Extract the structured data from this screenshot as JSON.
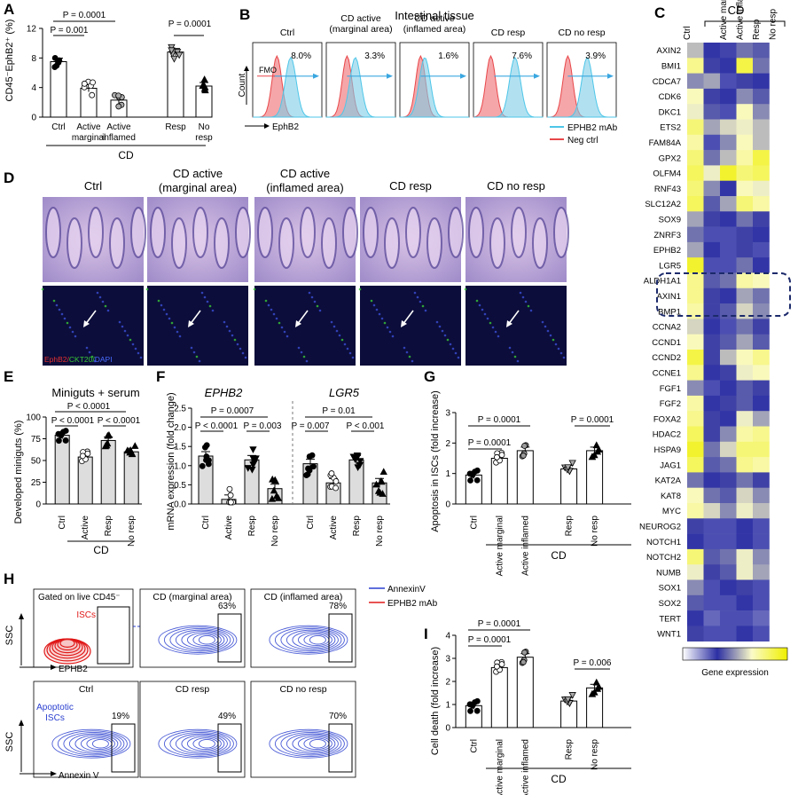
{
  "figure": {
    "cd_label": "CD",
    "significance": [
      "P = 0.0001",
      "P = 0.001",
      "P = 0.0001",
      "P < 0.0001",
      "P < 0.0001",
      "P < 0.0001",
      "P = 0.0007",
      "P < 0.0001",
      "P = 0.003",
      "P = 0.01",
      "P = 0.007",
      "P < 0.001",
      "P = 0.0001",
      "P = 0.0001",
      "P = 0.0001",
      "P = 0.0001",
      "P = 0.0001",
      "P = 0.006"
    ]
  },
  "panel_B": {
    "title": "Intestinal tissue",
    "conditions": [
      {
        "name": "Ctrl",
        "percent": "8.0%"
      },
      {
        "name": "CD active (marginal area)",
        "percent": "3.3%"
      },
      {
        "name": "CD active (inflamed area)",
        "percent": "1.6%"
      },
      {
        "name": "CD resp",
        "percent": "7.6%"
      },
      {
        "name": "CD no resp",
        "percent": "3.9%"
      }
    ],
    "y_label": "Count",
    "x_label": "EphB2",
    "fmo_label": "FMO",
    "legend": [
      {
        "label": "EPHB2 mAb",
        "color": "#4dc6e8"
      },
      {
        "label": "Neg ctrl",
        "color": "#e8474a"
      }
    ]
  },
  "panel_D": {
    "titles": [
      "Ctrl",
      "CD active (marginal area)",
      "CD active (inflamed area)",
      "CD resp",
      "CD no resp"
    ],
    "stain_legend": [
      {
        "label": "EphB2",
        "color": "#e23030"
      },
      {
        "label": "CKT20",
        "color": "#37c837"
      },
      {
        "label": "DAPI",
        "color": "#4a6cff"
      }
    ]
  },
  "panel_H": {
    "gate_title": "Gated on live CD45⁻",
    "isc_label": "ISCs",
    "apoptotic_label": "Apoptotic ISCs",
    "y_label": "SSC",
    "x_label_top": "EPHB2",
    "x_label_bottom": "Annexin V",
    "legend": [
      {
        "label": "AnnexinV",
        "color": "#2a3fcf"
      },
      {
        "label": "EPHB2 mAb",
        "color": "#e01818"
      }
    ],
    "plots": [
      {
        "title": "CD (marginal area)",
        "percent": "63%"
      },
      {
        "title": "CD (inflamed area)",
        "percent": "78%"
      },
      {
        "title": "Ctrl",
        "percent": "19%"
      },
      {
        "title": "CD resp",
        "percent": "49%"
      },
      {
        "title": "CD no resp",
        "percent": "70%"
      }
    ]
  },
  "chart_data": [
    {
      "panel": "A",
      "type": "bar",
      "categories": [
        "Ctrl",
        "Active marginal",
        "Active inflamed",
        "Resp",
        "No resp"
      ],
      "values": [
        7.5,
        3.9,
        2.3,
        8.8,
        4.2
      ],
      "ylabel": "CD45⁻EphB2⁺ (%)",
      "xlabel": "CD",
      "ylim": [
        0,
        12
      ],
      "yticks": [
        0,
        4,
        8,
        12
      ]
    },
    {
      "panel": "C",
      "type": "heatmap",
      "columns": [
        "Ctrl",
        "Active marginal",
        "Active inflamed",
        "Resp",
        "No resp"
      ],
      "rows": [
        "AXIN2",
        "BMI1",
        "CDCA7",
        "CDK6",
        "DKC1",
        "ETS2",
        "FAM84A",
        "GPX2",
        "OLFM4",
        "RNF43",
        "SLC12A2",
        "SOX9",
        "ZNRF3",
        "EPHB2",
        "LGR5",
        "ALDH1A1",
        "AXIN1",
        "BMP1",
        "CCNA2",
        "CCND1",
        "CCND2",
        "CCNE1",
        "FGF1",
        "FGF2",
        "FOXA2",
        "HDAC2",
        "HSPA9",
        "JAG1",
        "KAT2A",
        "KAT8",
        "MYC",
        "NEUROG2",
        "NOTCH1",
        "NOTCH2",
        "NUMB",
        "SOX1",
        "SOX2",
        "TERT",
        "WNT1"
      ],
      "values": [
        [
          0.45,
          0.15,
          0.12,
          0.3,
          0.25
        ],
        [
          0.7,
          0.2,
          0.15,
          0.85,
          0.3
        ],
        [
          0.35,
          0.4,
          0.1,
          0.2,
          0.15
        ],
        [
          0.6,
          0.2,
          0.15,
          0.35,
          0.25
        ],
        [
          0.55,
          0.25,
          0.1,
          0.6,
          0.35
        ],
        [
          0.75,
          0.4,
          0.5,
          0.55,
          0.45
        ],
        [
          0.65,
          0.1,
          0.35,
          0.6,
          0.45
        ],
        [
          0.75,
          0.3,
          0.45,
          0.65,
          0.85
        ],
        [
          0.8,
          0.55,
          0.9,
          0.75,
          0.8
        ],
        [
          0.75,
          0.35,
          0.15,
          0.6,
          0.55
        ],
        [
          0.8,
          0.25,
          0.4,
          0.75,
          0.65
        ],
        [
          0.4,
          0.2,
          0.15,
          0.3,
          0.2
        ],
        [
          0.3,
          0.1,
          0.1,
          0.2,
          0.15
        ],
        [
          0.4,
          0.15,
          0.1,
          0.2,
          0.1
        ],
        [
          0.9,
          0.1,
          0.1,
          0.3,
          0.15
        ],
        [
          0.7,
          0.25,
          0.3,
          0.65,
          0.6
        ],
        [
          0.7,
          0.2,
          0.15,
          0.4,
          0.3
        ],
        [
          0.65,
          0.2,
          0.25,
          0.5,
          0.35
        ],
        [
          0.5,
          0.15,
          0.1,
          0.3,
          0.2
        ],
        [
          0.6,
          0.2,
          0.25,
          0.4,
          0.25
        ],
        [
          0.85,
          0.2,
          0.45,
          0.6,
          0.7
        ],
        [
          0.7,
          0.15,
          0.2,
          0.55,
          0.6
        ],
        [
          0.35,
          0.1,
          0.15,
          0.25,
          0.2
        ],
        [
          0.65,
          0.15,
          0.2,
          0.25,
          0.15
        ],
        [
          0.7,
          0.2,
          0.15,
          0.55,
          0.4
        ],
        [
          0.8,
          0.2,
          0.35,
          0.65,
          0.7
        ],
        [
          0.9,
          0.3,
          0.5,
          0.75,
          0.75
        ],
        [
          0.8,
          0.25,
          0.3,
          0.7,
          0.65
        ],
        [
          0.3,
          0.15,
          0.2,
          0.3,
          0.2
        ],
        [
          0.6,
          0.3,
          0.25,
          0.5,
          0.35
        ],
        [
          0.65,
          0.5,
          0.35,
          0.55,
          0.45
        ],
        [
          0.2,
          0.1,
          0.1,
          0.15,
          0.1
        ],
        [
          0.15,
          0.1,
          0.1,
          0.15,
          0.1
        ],
        [
          0.75,
          0.25,
          0.3,
          0.55,
          0.35
        ],
        [
          0.55,
          0.2,
          0.25,
          0.55,
          0.4
        ],
        [
          0.35,
          0.1,
          0.15,
          0.2,
          0.1
        ],
        [
          0.25,
          0.1,
          0.1,
          0.15,
          0.1
        ],
        [
          0.15,
          0.05,
          0.1,
          0.1,
          0.05
        ],
        [
          0.2,
          0.1,
          0.1,
          0.15,
          0.1
        ]
      ],
      "highlight_rows": [
        "EPHB2",
        "LGR5",
        "ALDH1A1"
      ],
      "colorbar_label": "Gene expression"
    },
    {
      "panel": "E",
      "type": "bar",
      "title": "Miniguts + serum",
      "categories": [
        "Ctrl",
        "Active",
        "Resp",
        "No resp"
      ],
      "values": [
        79,
        54,
        73,
        60
      ],
      "ylabel": "Developed miniguts (%)",
      "xlabel": "CD",
      "ylim": [
        0,
        100
      ],
      "yticks": [
        0,
        25,
        50,
        75,
        100
      ]
    },
    {
      "panel": "F",
      "type": "bar",
      "groups": [
        {
          "name": "EPHB2",
          "categories": [
            "Ctrl",
            "Active",
            "Resp",
            "No resp"
          ],
          "values": [
            1.25,
            0.12,
            1.15,
            0.4
          ]
        },
        {
          "name": "LGR5",
          "categories": [
            "Ctrl",
            "Active",
            "Resp",
            "No resp"
          ],
          "values": [
            1.05,
            0.55,
            1.15,
            0.55
          ]
        }
      ],
      "ylabel": "mRNA expression (fold change)",
      "ylim": [
        0,
        2.5
      ],
      "yticks": [
        0.0,
        0.5,
        1.0,
        1.5,
        2.0,
        2.5
      ]
    },
    {
      "panel": "G",
      "type": "bar",
      "categories": [
        "Ctrl",
        "Active marginal",
        "Active inflamed",
        "Resp",
        "No resp"
      ],
      "values": [
        0.95,
        1.5,
        1.75,
        1.15,
        1.75
      ],
      "ylabel": "Apoptosis in ISCs (fold increase)",
      "xlabel": "CD",
      "ylim": [
        0,
        3
      ],
      "yticks": [
        0,
        1,
        2,
        3
      ]
    },
    {
      "panel": "I",
      "type": "bar",
      "categories": [
        "Ctrl",
        "Active marginal",
        "Active inflamed",
        "Resp",
        "No resp"
      ],
      "values": [
        0.95,
        2.6,
        3.05,
        1.15,
        1.72
      ],
      "ylabel": "Cell death (fold increase)",
      "xlabel": "CD",
      "ylim": [
        0,
        4
      ],
      "yticks": [
        0,
        1,
        2,
        3,
        4
      ]
    }
  ]
}
